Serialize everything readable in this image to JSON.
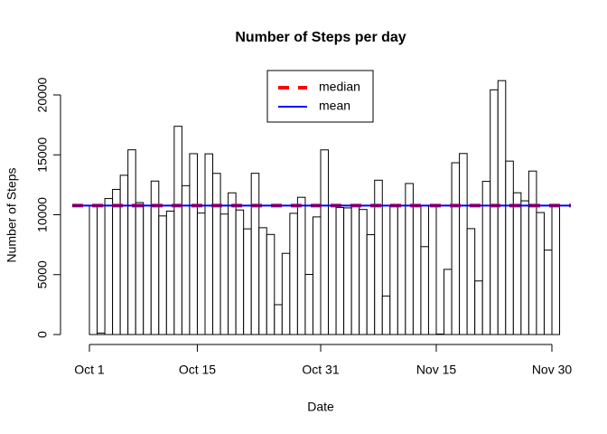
{
  "chart_data": {
    "type": "bar",
    "title": "Number of Steps per day",
    "xlabel": "Date",
    "ylabel": "Number of Steps",
    "x": [
      "Oct 1",
      "Oct 2",
      "Oct 3",
      "Oct 4",
      "Oct 5",
      "Oct 6",
      "Oct 7",
      "Oct 8",
      "Oct 9",
      "Oct 10",
      "Oct 11",
      "Oct 12",
      "Oct 13",
      "Oct 14",
      "Oct 15",
      "Oct 16",
      "Oct 17",
      "Oct 18",
      "Oct 19",
      "Oct 20",
      "Oct 21",
      "Oct 22",
      "Oct 23",
      "Oct 24",
      "Oct 25",
      "Oct 26",
      "Oct 27",
      "Oct 28",
      "Oct 29",
      "Oct 30",
      "Oct 31",
      "Nov 1",
      "Nov 2",
      "Nov 3",
      "Nov 4",
      "Nov 5",
      "Nov 6",
      "Nov 7",
      "Nov 8",
      "Nov 9",
      "Nov 10",
      "Nov 11",
      "Nov 12",
      "Nov 13",
      "Nov 14",
      "Nov 15",
      "Nov 16",
      "Nov 17",
      "Nov 18",
      "Nov 19",
      "Nov 20",
      "Nov 21",
      "Nov 22",
      "Nov 23",
      "Nov 24",
      "Nov 25",
      "Nov 26",
      "Nov 27",
      "Nov 28",
      "Nov 29",
      "Nov 30"
    ],
    "values": [
      10766,
      126,
      11352,
      12116,
      13294,
      15420,
      11015,
      10766,
      12811,
      9900,
      10304,
      17382,
      12426,
      15098,
      10139,
      15084,
      13452,
      10056,
      11829,
      10395,
      8821,
      13460,
      8918,
      8355,
      2492,
      6778,
      10119,
      11458,
      5018,
      9819,
      15414,
      10766,
      10600,
      10571,
      10766,
      10439,
      8334,
      12883,
      3219,
      10766,
      10766,
      12608,
      10765,
      7336,
      10766,
      41,
      5441,
      14339,
      15110,
      8841,
      4472,
      12787,
      20427,
      21194,
      14478,
      11834,
      11162,
      13646,
      10183,
      7047,
      10766
    ],
    "color": "#ffffff",
    "edgecolor": "#000000",
    "xticks": [
      "Oct 1",
      "Oct 15",
      "Oct 31",
      "Nov 15",
      "Nov 30"
    ],
    "ylim": [
      0,
      20000
    ],
    "yticks": [
      0,
      5000,
      10000,
      15000,
      20000
    ],
    "reference_lines": [
      {
        "name": "median",
        "value": 10766,
        "color": "#ff0000",
        "dashed": true
      },
      {
        "name": "mean",
        "value": 10766,
        "color": "#0000ff",
        "dashed": false
      }
    ],
    "legend": "top"
  }
}
